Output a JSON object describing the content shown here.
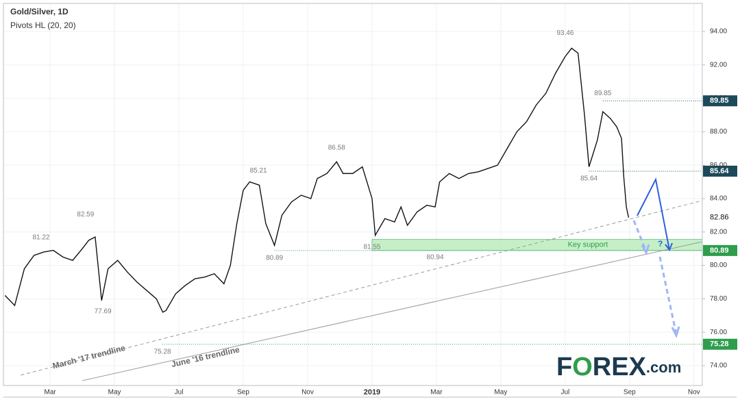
{
  "chart_data": {
    "type": "line",
    "title": "Gold/Silver, 1D",
    "subtitle": "Pivots HL (20, 20)",
    "series": [
      {
        "name": "Gold/Silver",
        "color": "#111111",
        "x": [
          0.6,
          0.9,
          1.2,
          1.5,
          1.8,
          2.1,
          2.4,
          2.7,
          3.0,
          3.2,
          3.4,
          3.6,
          3.8,
          4.1,
          4.4,
          4.7,
          5.0,
          5.3,
          5.5,
          5.6,
          5.9,
          6.2,
          6.5,
          6.8,
          7.1,
          7.4,
          7.6,
          7.8,
          8.0,
          8.2,
          8.5,
          8.7,
          8.97,
          9.2,
          9.5,
          9.8,
          10.1,
          10.3,
          10.6,
          10.9,
          11.1,
          11.4,
          11.7,
          12.0,
          12.1,
          12.4,
          12.7,
          12.9,
          13.1,
          13.4,
          13.7,
          13.96,
          14.1,
          14.4,
          14.7,
          15.0,
          15.3,
          15.6,
          15.9,
          16.2,
          16.5,
          16.8,
          17.1,
          17.4,
          17.7,
          18.0,
          18.2,
          18.4,
          18.6,
          18.74,
          19.0,
          19.17,
          19.4,
          19.6,
          19.75,
          19.82,
          19.9,
          19.97
        ],
        "values": [
          78.2,
          77.6,
          79.8,
          80.6,
          80.8,
          80.9,
          80.5,
          80.3,
          81.0,
          81.5,
          81.7,
          77.9,
          79.8,
          80.3,
          79.6,
          79.0,
          78.5,
          78.0,
          77.2,
          77.3,
          78.3,
          78.8,
          79.2,
          79.3,
          79.5,
          78.9,
          80.0,
          82.5,
          84.5,
          85.0,
          84.8,
          82.5,
          81.2,
          83.0,
          83.8,
          84.2,
          84.0,
          85.2,
          85.5,
          86.2,
          85.5,
          85.5,
          85.9,
          84.0,
          81.8,
          82.8,
          82.6,
          83.5,
          82.4,
          83.2,
          83.6,
          83.5,
          85.0,
          85.5,
          85.2,
          85.5,
          85.6,
          85.8,
          86.0,
          87.0,
          88.0,
          88.6,
          89.6,
          90.3,
          91.5,
          92.5,
          93.0,
          92.7,
          89.0,
          85.9,
          87.5,
          89.2,
          88.8,
          88.3,
          87.6,
          85.3,
          83.5,
          82.86
        ]
      }
    ],
    "pivot_highs": {
      "x": [
        1.72,
        3.1,
        8.47,
        10.9,
        18.0,
        19.17
      ],
      "values": [
        81.22,
        82.59,
        85.21,
        86.58,
        93.46,
        89.85
      ]
    },
    "pivot_lows": {
      "x": [
        3.64,
        5.49,
        8.97,
        12.0,
        13.96,
        18.74
      ],
      "values": [
        77.69,
        75.28,
        80.89,
        81.55,
        80.94,
        85.64
      ]
    },
    "levels": [
      {
        "value": 89.85,
        "start": 19.17,
        "color": "#1d4a5a"
      },
      {
        "value": 85.64,
        "start": 18.74,
        "color": "#1d4a5a"
      },
      {
        "value": 80.89,
        "start": 8.97,
        "color": "#2e9d4c"
      },
      {
        "value": 75.28,
        "start": 5.49,
        "color": "#2e9d4c"
      }
    ],
    "support_zone": {
      "label": "Key support",
      "low": 80.89,
      "high": 81.55,
      "start": 12.0,
      "color": "#2e9d4c"
    },
    "trendlines": [
      {
        "name": "March '17 trendline",
        "x": [
          1.09,
          22.26
        ],
        "values": [
          73.43,
          83.88
        ],
        "dashed": true
      },
      {
        "name": "June '16 trendline",
        "x": [
          3.0,
          22.26
        ],
        "values": [
          73.1,
          81.42
        ],
        "dashed": false
      }
    ],
    "question": "?",
    "xlim": [
      0.55,
      22.26
    ],
    "xticks": [
      {
        "value": 2,
        "label": "Mar"
      },
      {
        "value": 4,
        "label": "May"
      },
      {
        "value": 6,
        "label": "Jul"
      },
      {
        "value": 8,
        "label": "Sep"
      },
      {
        "value": 10,
        "label": "Nov"
      },
      {
        "value": 12,
        "label": "2019"
      },
      {
        "value": 14,
        "label": "Mar"
      },
      {
        "value": 16,
        "label": "May"
      },
      {
        "value": 18,
        "label": "Jul"
      },
      {
        "value": 20,
        "label": "Sep"
      },
      {
        "value": 22,
        "label": "Nov"
      }
    ],
    "ylim": [
      72.81,
      95.68
    ],
    "yticks": [
      {
        "value": 74,
        "label": "74.00"
      },
      {
        "value": 76,
        "label": "76.00"
      },
      {
        "value": 78,
        "label": "78.00"
      },
      {
        "value": 80,
        "label": "80.00"
      },
      {
        "value": 82,
        "label": "82.00"
      },
      {
        "value": 84,
        "label": "84.00"
      },
      {
        "value": 86,
        "label": "86.00"
      },
      {
        "value": 88,
        "label": "88.00"
      },
      {
        "value": 90,
        "label": "90.00"
      },
      {
        "value": 92,
        "label": "92.00"
      },
      {
        "value": 94,
        "label": "94.00"
      }
    ],
    "grid": true,
    "logo": [
      "F",
      "O",
      "REX",
      ".com"
    ]
  }
}
